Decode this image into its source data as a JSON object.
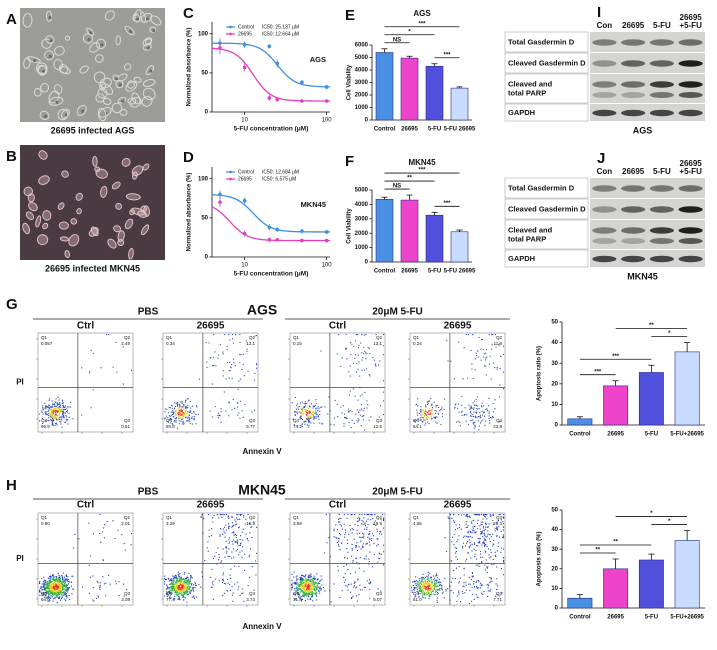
{
  "panel_labels": [
    "A",
    "B",
    "C",
    "D",
    "E",
    "F",
    "G",
    "H",
    "I",
    "J"
  ],
  "images": [
    {
      "caption": "26695 infected AGS"
    },
    {
      "caption": "26695 infected MKN45"
    }
  ],
  "chart_data": [
    {
      "type": "line",
      "title": "AGS",
      "x_label": "5-FU concentration (μM)",
      "y_label": "Normalized absorbance (%)",
      "log_x": true,
      "x": [
        5,
        10,
        20,
        25,
        50,
        100
      ],
      "xlim": [
        4,
        110
      ],
      "xticks": [
        10,
        100
      ],
      "ylim": [
        0,
        115
      ],
      "yticks": [
        0,
        50,
        100
      ],
      "legend": "upper left",
      "series": [
        {
          "name": "Control",
          "color": "#3d8fe0",
          "values": [
            88,
            86,
            84,
            62,
            38,
            32
          ],
          "errors": [
            6,
            4,
            3,
            5,
            3,
            3
          ],
          "ic50": {
            "value": 25.137,
            "label": "IC50: 25.137 μM"
          }
        },
        {
          "name": "26695",
          "color": "#e040c0",
          "values": [
            82,
            57,
            18,
            16,
            14,
            14
          ],
          "errors": [
            8,
            5,
            4,
            3,
            2,
            2
          ],
          "ic50": {
            "value": 12.664,
            "label": "IC50: 12.664 μM"
          }
        }
      ]
    },
    {
      "type": "line",
      "title": "MKN45",
      "x_label": "5-FU concentration (μM)",
      "y_label": "Normalized absorbance (%)",
      "log_x": true,
      "x": [
        5,
        10,
        20,
        25,
        50,
        100
      ],
      "xlim": [
        4,
        110
      ],
      "xticks": [
        10,
        100
      ],
      "ylim": [
        0,
        115
      ],
      "yticks": [
        0,
        50,
        100
      ],
      "legend": "upper left",
      "series": [
        {
          "name": "Control",
          "color": "#3d8fe0",
          "values": [
            80,
            72,
            38,
            35,
            33,
            32
          ],
          "errors": [
            5,
            4,
            4,
            3,
            3,
            2
          ],
          "ic50": {
            "value": 12.684,
            "label": "IC50: 12.684 μM"
          }
        },
        {
          "name": "26695",
          "color": "#e040c0",
          "values": [
            70,
            30,
            22,
            22,
            21,
            21
          ],
          "errors": [
            6,
            4,
            3,
            2,
            2,
            2
          ],
          "ic50": {
            "value": 6.575,
            "label": "IC50: 6.575 μM"
          }
        }
      ]
    },
    {
      "type": "bar",
      "title": "AGS",
      "y_label": "Cell Viability",
      "categories": [
        "Control",
        "26695",
        "5-FU",
        "5-FU 26695"
      ],
      "values": [
        5400,
        4950,
        4300,
        2550
      ],
      "errors": [
        300,
        150,
        200,
        100
      ],
      "colors": [
        "#4a90e2",
        "#ee44cc",
        "#5050dd",
        "#c8dcff"
      ],
      "ylim": [
        0,
        6000
      ],
      "yticks": [
        0,
        1000,
        2000,
        3000,
        4000,
        5000,
        6000
      ],
      "significance": [
        {
          "pair": [
            0,
            1
          ],
          "label": "NS"
        },
        {
          "pair": [
            2,
            3
          ],
          "label": "***"
        },
        {
          "pair": [
            0,
            2
          ],
          "label": "*"
        },
        {
          "pair": [
            0,
            3
          ],
          "label": "***"
        }
      ]
    },
    {
      "type": "bar",
      "title": "MKN45",
      "y_label": "Cell Viability",
      "categories": [
        "Control",
        "26695",
        "5-FU",
        "5-FU 26695"
      ],
      "values": [
        4350,
        4300,
        3250,
        2100
      ],
      "errors": [
        150,
        350,
        200,
        120
      ],
      "colors": [
        "#4a90e2",
        "#ee44cc",
        "#5050dd",
        "#c8dcff"
      ],
      "ylim": [
        0,
        5000
      ],
      "yticks": [
        0,
        1000,
        2000,
        3000,
        4000,
        5000
      ],
      "significance": [
        {
          "pair": [
            0,
            1
          ],
          "label": "NS"
        },
        {
          "pair": [
            2,
            3
          ],
          "label": "***"
        },
        {
          "pair": [
            0,
            2
          ],
          "label": "**"
        },
        {
          "pair": [
            0,
            3
          ],
          "label": "***"
        }
      ]
    },
    {
      "type": "bar",
      "y_label": "Apoptosis ratio (%)",
      "categories": [
        "Control",
        "26695",
        "5-FU",
        "5-FU+26695"
      ],
      "values": [
        3,
        19,
        25.5,
        35.5
      ],
      "errors": [
        1,
        2.5,
        3.5,
        4.5
      ],
      "colors": [
        "#4a90e2",
        "#ee44cc",
        "#5050dd",
        "#c8dcff"
      ],
      "ylim": [
        0,
        50
      ],
      "yticks": [
        0,
        10,
        20,
        30,
        40,
        50
      ],
      "significance": [
        {
          "pair": [
            0,
            1
          ],
          "label": "***"
        },
        {
          "pair": [
            0,
            2
          ],
          "label": "***"
        },
        {
          "pair": [
            2,
            3
          ],
          "label": "*"
        },
        {
          "pair": [
            1,
            3
          ],
          "label": "**"
        }
      ]
    },
    {
      "type": "bar",
      "y_label": "Apoptosis ratio (%)",
      "categories": [
        "Control",
        "26695",
        "5-FU",
        "5-FU+26695"
      ],
      "values": [
        5,
        20,
        24.5,
        34.5
      ],
      "errors": [
        1.8,
        5,
        3,
        5
      ],
      "colors": [
        "#4a90e2",
        "#ee44cc",
        "#5050dd",
        "#c8dcff"
      ],
      "ylim": [
        0,
        50
      ],
      "yticks": [
        0,
        10,
        20,
        30,
        40,
        50
      ],
      "significance": [
        {
          "pair": [
            0,
            1
          ],
          "label": "**"
        },
        {
          "pair": [
            0,
            2
          ],
          "label": "**"
        },
        {
          "pair": [
            2,
            3
          ],
          "label": "*"
        },
        {
          "pair": [
            1,
            3
          ],
          "label": "*"
        }
      ]
    }
  ],
  "flow": [
    {
      "title": "AGS",
      "groups": [
        "PBS",
        "20μM 5-FU"
      ],
      "samples": [
        "Ctrl",
        "26695",
        "Ctrl",
        "26695"
      ],
      "y_label": "PI",
      "x_label": "Annexin V",
      "plots": [
        {
          "quadrants": [
            {
              "name": "Q1",
              "value": "0.057"
            },
            {
              "name": "Q2",
              "value": "2.49"
            },
            {
              "name": "Q3",
              "value": "0.51"
            },
            {
              "name": "Q4",
              "value": "96.9"
            }
          ]
        },
        {
          "quadrants": [
            {
              "name": "Q1",
              "value": "0.34"
            },
            {
              "name": "Q2",
              "value": "13.1"
            },
            {
              "name": "Q3",
              "value": "5.77"
            },
            {
              "name": "Q4",
              "value": "80.8"
            }
          ]
        },
        {
          "quadrants": [
            {
              "name": "Q1",
              "value": "0.15"
            },
            {
              "name": "Q2",
              "value": "13.1"
            },
            {
              "name": "Q3",
              "value": "12.5"
            },
            {
              "name": "Q4",
              "value": "74.2"
            }
          ]
        },
        {
          "quadrants": [
            {
              "name": "Q1",
              "value": "0.24"
            },
            {
              "name": "Q2",
              "value": "11.9"
            },
            {
              "name": "Q3",
              "value": "23.8"
            },
            {
              "name": "Q4",
              "value": "64.1"
            }
          ]
        }
      ]
    },
    {
      "title": "MKN45",
      "groups": [
        "PBS",
        "20μM 5-FU"
      ],
      "samples": [
        "Ctrl",
        "26695",
        "Ctrl",
        "26695"
      ],
      "y_label": "PI",
      "x_label": "Annexin V",
      "plots": [
        {
          "quadrants": [
            {
              "name": "Q1",
              "value": "0.90"
            },
            {
              "name": "Q2",
              "value": "2.01"
            },
            {
              "name": "Q3",
              "value": "3.08"
            },
            {
              "name": "Q4",
              "value": "94.0"
            }
          ]
        },
        {
          "quadrants": [
            {
              "name": "Q1",
              "value": "3.29"
            },
            {
              "name": "Q2",
              "value": "15.8"
            },
            {
              "name": "Q3",
              "value": "3.73"
            },
            {
              "name": "Q4",
              "value": "77.4"
            }
          ]
        },
        {
          "quadrants": [
            {
              "name": "Q1",
              "value": "3.59"
            },
            {
              "name": "Q2",
              "value": "19.9"
            },
            {
              "name": "Q3",
              "value": "5.07"
            },
            {
              "name": "Q4",
              "value": "71.5"
            }
          ]
        },
        {
          "quadrants": [
            {
              "name": "Q1",
              "value": "4.55"
            },
            {
              "name": "Q2",
              "value": "26.3"
            },
            {
              "name": "Q3",
              "value": "7.71"
            },
            {
              "name": "Q4",
              "value": "61.0"
            }
          ]
        }
      ]
    }
  ],
  "blots": [
    {
      "caption": "AGS",
      "columns": [
        [
          "Con"
        ],
        [
          "26695"
        ],
        [
          "5-FU"
        ],
        [
          "26695",
          "+5-FU"
        ]
      ],
      "rows": [
        [
          "Total Gasdermin D"
        ],
        [
          "Cleaved Gasdermin D"
        ],
        [
          "Cleaved and",
          "total PARP"
        ],
        [
          "GAPDH"
        ]
      ]
    },
    {
      "caption": "MKN45",
      "columns": [
        [
          "Con"
        ],
        [
          "26695"
        ],
        [
          "5-FU"
        ],
        [
          "26695",
          "+5-FU"
        ]
      ],
      "rows": [
        [
          "Total Gasdermin D"
        ],
        [
          "Cleaved Gasdermin D"
        ],
        [
          "Cleaved and",
          "total PARP"
        ],
        [
          "GAPDH"
        ]
      ]
    }
  ]
}
